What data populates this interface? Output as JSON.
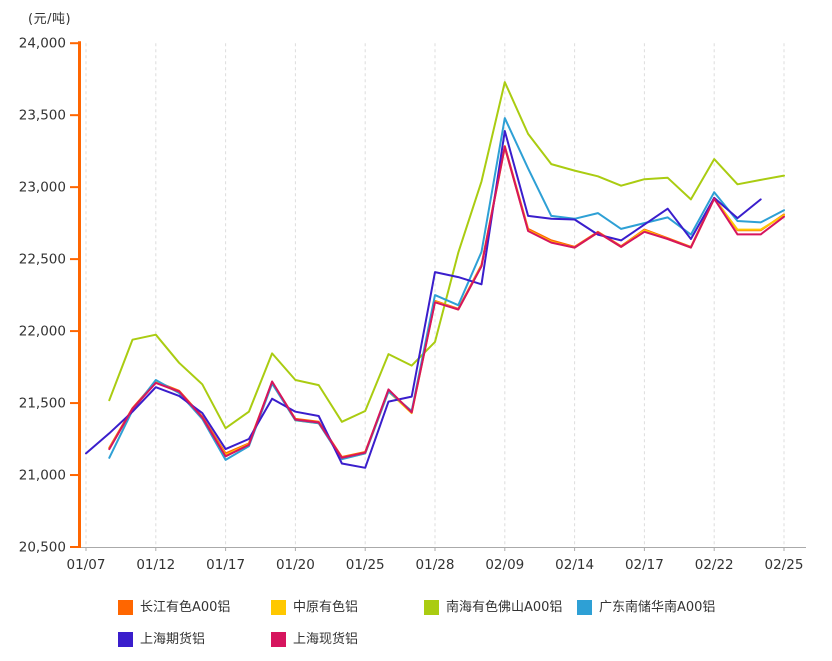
{
  "unit_label": "(元/吨)",
  "chart_data": {
    "type": "line",
    "title": "",
    "ylabel_unit": "(元/吨)",
    "ylim": [
      20500,
      24000
    ],
    "y_tick_values": [
      24000,
      23500,
      23000,
      22500,
      22000,
      21500,
      21000,
      20500
    ],
    "y_tick_labels": [
      "24,000",
      "23,500",
      "23,000",
      "22,500",
      "22,000",
      "21,500",
      "21,000",
      "20,500"
    ],
    "x_tick_labels": [
      "01/07",
      "01/12",
      "01/17",
      "01/20",
      "01/25",
      "01/28",
      "02/09",
      "02/14",
      "02/17",
      "02/22",
      "02/25"
    ],
    "dates": [
      "01/07",
      "01/10",
      "01/11",
      "01/12",
      "01/13",
      "01/14",
      "01/17",
      "01/18",
      "01/19",
      "01/20",
      "01/21",
      "01/24",
      "01/25",
      "01/26",
      "01/27",
      "01/28",
      "02/07",
      "02/08",
      "02/09",
      "02/10",
      "02/11",
      "02/14",
      "02/15",
      "02/16",
      "02/17",
      "02/18",
      "02/21",
      "02/22",
      "02/23",
      "02/24",
      "02/25"
    ],
    "grid": "vertical-dashed",
    "legend_position": "bottom",
    "axis_colors": {
      "y_axis": "#FF6600",
      "x_axis": "#AAAAAA",
      "grid": "#DDDDDD",
      "tick_text": "#333333"
    },
    "series": [
      {
        "name": "长江有色A00铝",
        "color": "#FF6600",
        "values": [
          null,
          21190,
          21465,
          21650,
          21585,
          21405,
          21150,
          21220,
          21645,
          21390,
          21370,
          21125,
          21160,
          21585,
          21440,
          22210,
          22155,
          22460,
          23285,
          22710,
          22630,
          22585,
          22690,
          22590,
          22705,
          22645,
          22585,
          22925,
          22700,
          22700,
          22810
        ]
      },
      {
        "name": "中原有色铝",
        "color": "#FFC800",
        "values": [
          null,
          21185,
          21455,
          21645,
          21575,
          21395,
          21140,
          21215,
          21640,
          21380,
          21360,
          21115,
          21150,
          21580,
          21430,
          22205,
          22150,
          22455,
          23275,
          22700,
          22620,
          22580,
          22685,
          22585,
          22700,
          22640,
          22580,
          22920,
          22705,
          22705,
          22805
        ]
      },
      {
        "name": "南海有色佛山A00铝",
        "color": "#AACC11",
        "values": [
          null,
          21520,
          21940,
          21975,
          21780,
          21630,
          21325,
          21440,
          21845,
          21660,
          21625,
          21370,
          21445,
          21840,
          21760,
          21925,
          22545,
          23040,
          23730,
          23370,
          23160,
          23115,
          23075,
          23010,
          23055,
          23065,
          22915,
          23195,
          23020,
          23050,
          23080
        ]
      },
      {
        "name": "广东南储华南A00铝",
        "color": "#2EA0D5",
        "values": [
          null,
          21120,
          21450,
          21660,
          21570,
          21390,
          21105,
          21200,
          21635,
          21380,
          21360,
          21110,
          21150,
          21580,
          21445,
          22250,
          22180,
          22550,
          23480,
          23130,
          22800,
          22780,
          22820,
          22710,
          22750,
          22790,
          22670,
          22965,
          22765,
          22755,
          22840
        ]
      },
      {
        "name": "上海期货铝",
        "color": "#3A1ECC",
        "values": [
          21150,
          21290,
          21440,
          21610,
          21550,
          21430,
          21180,
          21250,
          21530,
          21440,
          21410,
          21080,
          21050,
          21510,
          21545,
          22410,
          22375,
          22325,
          23390,
          22800,
          22780,
          22775,
          22670,
          22630,
          22740,
          22850,
          22640,
          22925,
          22785,
          22915,
          null
        ]
      },
      {
        "name": "上海现货铝",
        "color": "#D6155E",
        "values": [
          null,
          21180,
          21460,
          21640,
          21580,
          21400,
          21130,
          21210,
          21650,
          21385,
          21365,
          21120,
          21155,
          21595,
          21435,
          22200,
          22150,
          22450,
          23280,
          22695,
          22615,
          22580,
          22685,
          22585,
          22690,
          22640,
          22580,
          22920,
          22672,
          22672,
          22795
        ]
      }
    ]
  }
}
